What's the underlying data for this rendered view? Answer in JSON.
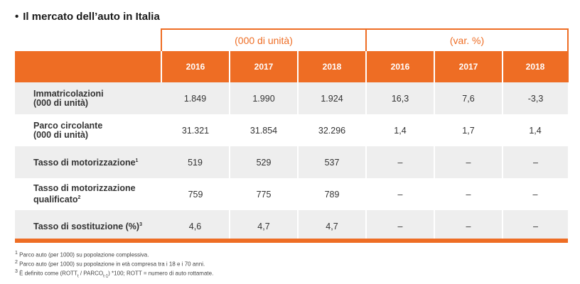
{
  "title": "Il mercato dell’auto in Italia",
  "groups": [
    "(000 di unità)",
    "(var. %)"
  ],
  "years": [
    "2016",
    "2017",
    "2018",
    "2016",
    "2017",
    "2018"
  ],
  "rows": [
    {
      "label_line1": "Immatricolazioni",
      "label_line2": "(000 di unità)",
      "sup": "",
      "values": [
        "1.849",
        "1.990",
        "1.924",
        "16,3",
        "7,6",
        "-3,3"
      ]
    },
    {
      "label_line1": "Parco circolante",
      "label_line2": "(000 di unità)",
      "sup": "",
      "values": [
        "31.321",
        "31.854",
        "32.296",
        "1,4",
        "1,7",
        "1,4"
      ]
    },
    {
      "label_line1": "Tasso di motorizzazione",
      "label_line2": "",
      "sup": "1",
      "values": [
        "519",
        "529",
        "537",
        "–",
        "–",
        "–"
      ]
    },
    {
      "label_line1": "Tasso di motorizzazione",
      "label_line2": "qualificato",
      "sup": "2",
      "values": [
        "759",
        "775",
        "789",
        "–",
        "–",
        "–"
      ]
    },
    {
      "label_line1": "Tasso di sostituzione (%)",
      "label_line2": "",
      "sup": "3",
      "values": [
        "4,6",
        "4,7",
        "4,7",
        "–",
        "–",
        "–"
      ]
    }
  ],
  "footnotes": {
    "n1": {
      "mark": "1",
      "text": "Parco auto (per 1000) su popolazione complessiva."
    },
    "n2": {
      "mark": "2",
      "text": "Parco auto (per 1000) su popolazione in età compresa tra i 18 e i 70 anni."
    },
    "n3": {
      "mark": "3",
      "pre": "È definito come (ROTT",
      "sub1": "t",
      "mid": " / PARCO",
      "sub2": "t-1",
      "post": ") *100; ROTT = numero di auto rottamate."
    }
  },
  "colors": {
    "accent": "#ee6d24",
    "shade": "#eeeeee"
  }
}
